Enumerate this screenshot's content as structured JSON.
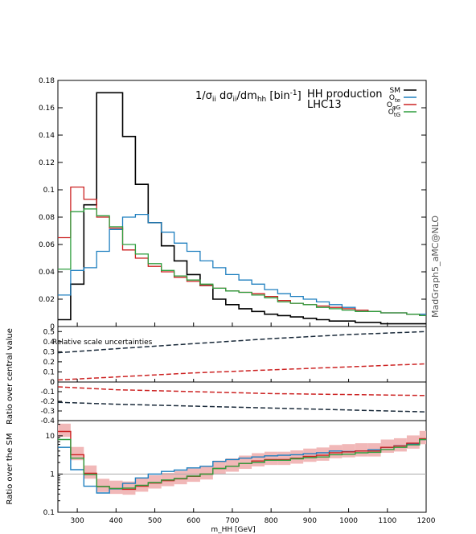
{
  "chart_data": [
    {
      "type": "line",
      "panel": "main",
      "title": "1/σ_ii dσ_ii/dm_hh [bin^-1]",
      "title_parts": {
        "a": "1/σ",
        "b": "ii",
        "c": " dσ",
        "d": "ii",
        "e": "/dm",
        "f": "hh",
        "g": " [bin",
        "h": "-1",
        "i": "]"
      },
      "annotation": [
        "HH production",
        "LHC13"
      ],
      "side_label": "MadGraph5_aMC@NLO",
      "xlim": [
        250,
        1200
      ],
      "ylim": [
        0,
        0.18
      ],
      "yticks": [
        "0",
        "0.02",
        "0.04",
        "0.06",
        "0.08",
        "0.1",
        "0.12",
        "0.14",
        "0.16",
        "0.18"
      ],
      "bin_edges": [
        250,
        283,
        317,
        350,
        383,
        417,
        450,
        483,
        517,
        550,
        583,
        617,
        650,
        683,
        717,
        750,
        783,
        817,
        850,
        883,
        917,
        950,
        983,
        1017,
        1050,
        1083,
        1117,
        1150,
        1183,
        1200
      ],
      "legend_position": "top-right",
      "series": [
        {
          "name": "SM",
          "sub": "",
          "color": "#000000",
          "values": [
            0.005,
            0.031,
            0.089,
            0.171,
            0.171,
            0.139,
            0.104,
            0.076,
            0.059,
            0.048,
            0.038,
            0.03,
            0.02,
            0.016,
            0.013,
            0.011,
            0.009,
            0.008,
            0.007,
            0.006,
            0.005,
            0.004,
            0.004,
            0.003,
            0.003,
            0.002,
            0.002,
            0.002,
            0.002
          ]
        },
        {
          "name": "O",
          "sub": "te",
          "color": "#1e7fbf",
          "values": [
            0.023,
            0.041,
            0.043,
            0.055,
            0.071,
            0.08,
            0.082,
            0.076,
            0.069,
            0.061,
            0.055,
            0.048,
            0.043,
            0.038,
            0.034,
            0.031,
            0.027,
            0.024,
            0.022,
            0.02,
            0.018,
            0.016,
            0.014,
            0.012,
            0.011,
            0.01,
            0.01,
            0.009,
            0.009
          ]
        },
        {
          "name": "O",
          "sub": "φG",
          "color": "#cc2222",
          "values": [
            0.065,
            0.102,
            0.093,
            0.08,
            0.072,
            0.056,
            0.05,
            0.044,
            0.04,
            0.036,
            0.033,
            0.03,
            0.028,
            0.026,
            0.025,
            0.024,
            0.022,
            0.019,
            0.017,
            0.016,
            0.015,
            0.014,
            0.013,
            0.012,
            0.011,
            0.01,
            0.01,
            0.009,
            0.008
          ]
        },
        {
          "name": "O",
          "sub": "tG",
          "color": "#2e9e3e",
          "values": [
            0.042,
            0.084,
            0.086,
            0.081,
            0.073,
            0.06,
            0.053,
            0.046,
            0.041,
            0.037,
            0.034,
            0.031,
            0.028,
            0.026,
            0.025,
            0.023,
            0.021,
            0.018,
            0.017,
            0.016,
            0.014,
            0.013,
            0.012,
            0.011,
            0.011,
            0.01,
            0.01,
            0.009,
            0.008
          ]
        }
      ]
    },
    {
      "type": "line",
      "panel": "scale",
      "ylabel": "Ratio over central value",
      "annotation": "Relative scale uncertainties",
      "upper_ylim": [
        0,
        0.55
      ],
      "upper_yticks": [
        "0",
        "0.1",
        "0.2",
        "0.3",
        "0.4",
        "0.5"
      ],
      "lower_ylim": [
        -0.4,
        0
      ],
      "lower_yticks": [
        "0",
        "-0.1",
        "-0.2",
        "-0.3",
        "-0.4"
      ],
      "bands": [
        {
          "name": "SM up",
          "color": "#1a2a3a",
          "x": [
            250,
            400,
            600,
            800,
            1000,
            1200
          ],
          "values": [
            0.29,
            0.33,
            0.38,
            0.43,
            0.47,
            0.5
          ]
        },
        {
          "name": "SM down",
          "color": "#1a2a3a",
          "x": [
            250,
            400,
            600,
            800,
            1000,
            1200
          ],
          "values": [
            -0.21,
            -0.23,
            -0.25,
            -0.27,
            -0.29,
            -0.31
          ]
        },
        {
          "name": "O up",
          "color": "#cc2222",
          "x": [
            250,
            400,
            600,
            800,
            1000,
            1200
          ],
          "values": [
            0.02,
            0.05,
            0.09,
            0.12,
            0.15,
            0.18
          ]
        },
        {
          "name": "O down",
          "color": "#cc2222",
          "x": [
            250,
            400,
            600,
            800,
            1000,
            1200
          ],
          "values": [
            -0.05,
            -0.08,
            -0.1,
            -0.12,
            -0.13,
            -0.14
          ]
        }
      ]
    },
    {
      "type": "line",
      "panel": "ratio",
      "ylabel": "Ratio over the SM",
      "xlabel": "m_HH [GeV]",
      "yscale": "log",
      "ylim": [
        0.1,
        25
      ],
      "yticks": [
        "0.1",
        "1",
        "10"
      ],
      "xticks": [
        "300",
        "400",
        "500",
        "600",
        "700",
        "800",
        "900",
        "1000",
        "1100",
        "1200"
      ],
      "series": [
        {
          "name": "O_te",
          "color": "#1e7fbf",
          "values": [
            5.0,
            1.3,
            0.48,
            0.32,
            0.41,
            0.57,
            0.79,
            1.0,
            1.17,
            1.27,
            1.45,
            1.6,
            2.15,
            2.4,
            2.6,
            2.8,
            3.0,
            3.1,
            3.2,
            3.4,
            3.6,
            4.0,
            3.9,
            4.0,
            4.3,
            5.0,
            5.5,
            6.2,
            8.0
          ]
        },
        {
          "name": "O_φG",
          "color": "#cc2222",
          "values": [
            13.0,
            3.2,
            1.05,
            0.47,
            0.42,
            0.4,
            0.48,
            0.58,
            0.67,
            0.75,
            0.87,
            1.0,
            1.4,
            1.6,
            1.9,
            2.2,
            2.4,
            2.4,
            2.6,
            2.9,
            3.1,
            3.6,
            3.8,
            4.0,
            4.0,
            5.0,
            5.4,
            6.4,
            8.4
          ]
        },
        {
          "name": "O_tG",
          "color": "#2e9e3e",
          "values": [
            8.0,
            2.6,
            0.97,
            0.47,
            0.42,
            0.43,
            0.51,
            0.6,
            0.7,
            0.77,
            0.89,
            1.0,
            1.4,
            1.6,
            1.9,
            2.0,
            2.3,
            2.3,
            2.5,
            2.7,
            2.8,
            3.2,
            3.3,
            3.6,
            3.7,
            4.4,
            5.0,
            5.8,
            8.0
          ]
        }
      ],
      "band": {
        "name": "O_φG scale uncertainty",
        "color": "#f1b8b8"
      }
    }
  ]
}
